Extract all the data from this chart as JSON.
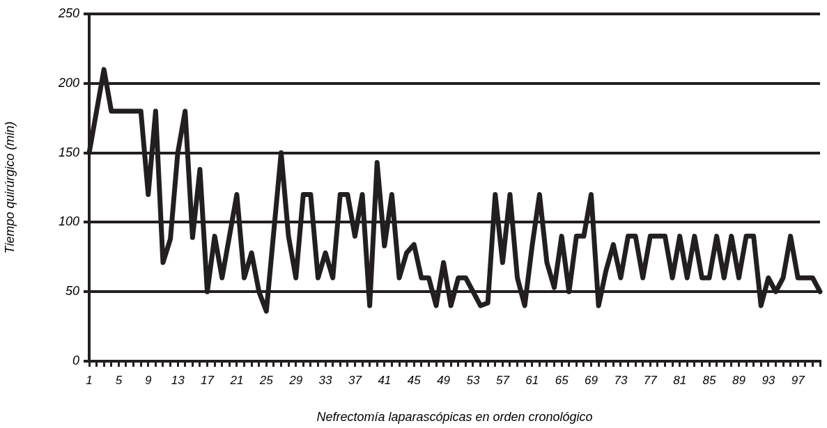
{
  "chart_data": {
    "type": "line",
    "xlabel": "Nefrectomía laparascópicas en orden cronológico",
    "ylabel": "Tiempo quirúrgico (min)",
    "categories": [
      "1",
      null,
      null,
      null,
      "5",
      null,
      null,
      null,
      "9",
      null,
      null,
      null,
      "13",
      null,
      null,
      null,
      "17",
      null,
      null,
      null,
      "21",
      null,
      null,
      null,
      "25",
      null,
      null,
      null,
      "29",
      null,
      null,
      null,
      "33",
      null,
      null,
      null,
      "37",
      null,
      null,
      null,
      "41",
      null,
      null,
      null,
      "45",
      null,
      null,
      null,
      "49",
      null,
      null,
      null,
      "53",
      null,
      null,
      null,
      "57",
      null,
      null,
      null,
      "61",
      null,
      null,
      null,
      "65",
      null,
      null,
      null,
      "69",
      null,
      null,
      null,
      "73",
      null,
      null,
      null,
      "77",
      null,
      null,
      null,
      "81",
      null,
      null,
      null,
      "85",
      null,
      null,
      null,
      "89",
      null,
      null,
      null,
      "93",
      null,
      null,
      null,
      "97",
      null,
      null,
      null
    ],
    "series": [
      {
        "color": "#231f20",
        "values": [
          150,
          180,
          210,
          180,
          180,
          180,
          180,
          180,
          120,
          180,
          71,
          88,
          150,
          180,
          89,
          138,
          50,
          90,
          60,
          90,
          120,
          60,
          78,
          50,
          36,
          93,
          150,
          90,
          60,
          120,
          120,
          60,
          78,
          60,
          120,
          120,
          90,
          120,
          40,
          143,
          83,
          120,
          60,
          78,
          84,
          60,
          60,
          40,
          71,
          40,
          60,
          60,
          50,
          40,
          42,
          120,
          71,
          120,
          60,
          40,
          83,
          120,
          71,
          53,
          90,
          50,
          90,
          90,
          120,
          40,
          65,
          84,
          60,
          90,
          90,
          60,
          90,
          90,
          90,
          60,
          90,
          60,
          90,
          60,
          60,
          90,
          60,
          90,
          60,
          90,
          90,
          40,
          60,
          50,
          60,
          90,
          60,
          60,
          60,
          50
        ]
      }
    ],
    "ylim": [
      0,
      250
    ],
    "yticks": [
      0,
      50,
      100,
      150,
      200,
      250
    ],
    "grid": "y",
    "marker": "none",
    "line_style": "solid",
    "legend": false
  }
}
